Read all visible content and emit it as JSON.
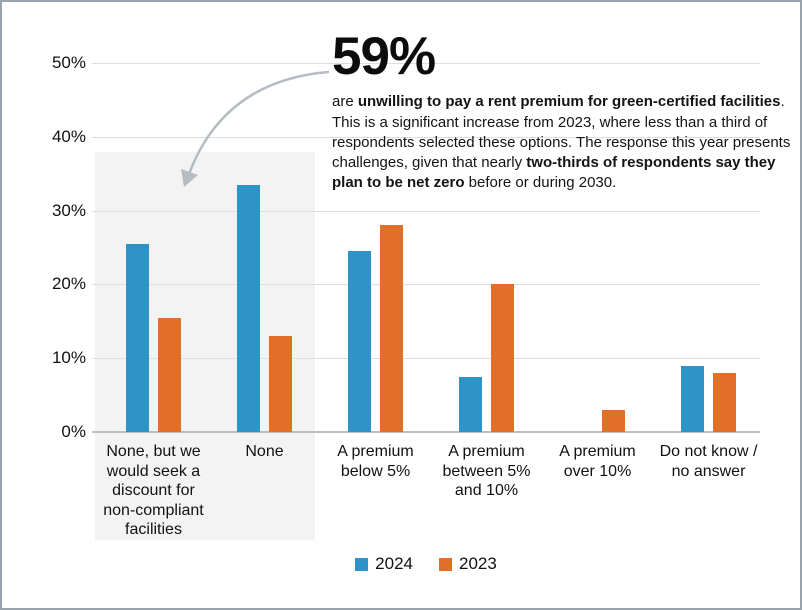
{
  "panel": {
    "background": "#ffffff",
    "border_color": "#9aa3ab",
    "highlight_color": "#f3f3f3",
    "gridline_color": "#dedede",
    "axis_line_color": "#b7bec6",
    "arrow_color": "#b6bcc4"
  },
  "annotation": {
    "headline": "59%",
    "segments": [
      {
        "text": "are ",
        "bold": false
      },
      {
        "text": "unwilling to pay a rent premium for green-certified facilities",
        "bold": true
      },
      {
        "text": ". This is a significant increase from 2023, where less than a third of respondents selected these options. The response this year presents challenges, given that nearly ",
        "bold": false
      },
      {
        "text": "two-thirds of respondents say they plan to be net zero",
        "bold": true
      },
      {
        "text": " before or during 2030.",
        "bold": false
      }
    ]
  },
  "legend": {
    "items": [
      {
        "label": "2024",
        "color": "#2e93c6"
      },
      {
        "label": "2023",
        "color": "#e26f28"
      }
    ]
  },
  "chart_data": {
    "type": "bar",
    "categories": [
      "None, but we would seek a discount for non-compliant facilities",
      "None",
      "A premium below 5%",
      "A premium between 5% and 10%",
      "A premium over 10%",
      "Do not know / no answer"
    ],
    "series": [
      {
        "name": "2024",
        "color": "#2e93c6",
        "values": [
          25.5,
          33.5,
          24.5,
          7.5,
          0,
          9
        ]
      },
      {
        "name": "2023",
        "color": "#e26f28",
        "values": [
          15.5,
          13,
          28,
          20,
          3,
          8
        ]
      }
    ],
    "yticks": [
      "0%",
      "10%",
      "20%",
      "30%",
      "40%",
      "50%"
    ],
    "ylim": [
      0,
      50
    ],
    "grid": true,
    "legend_position": "bottom",
    "highlighted_categories": [
      "None, but we would seek a discount for non-compliant facilities",
      "None"
    ]
  }
}
